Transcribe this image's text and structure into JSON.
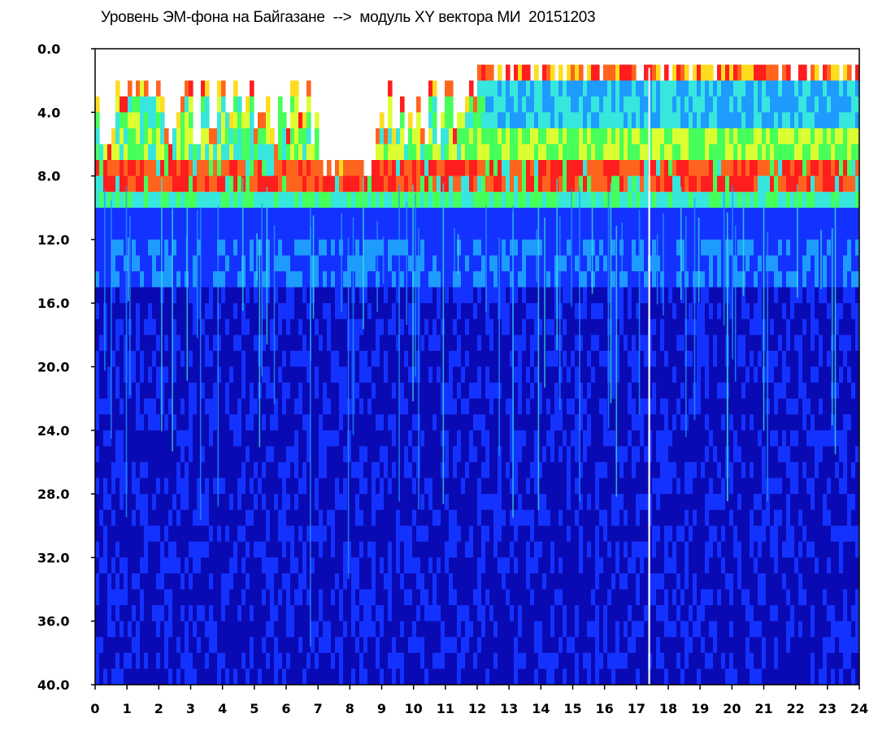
{
  "chart_data": {
    "type": "heatmap",
    "title": "Уровень ЭМ-фона на Байгазане  -->  модуль XY вектора МИ  20151203",
    "xlabel": "",
    "ylabel": "",
    "xlim": [
      0,
      24
    ],
    "ylim": [
      0.0,
      40.0
    ],
    "y_axis_inverted": true,
    "x_ticks": [
      "0",
      "1",
      "2",
      "3",
      "4",
      "5",
      "6",
      "7",
      "8",
      "9",
      "10",
      "11",
      "12",
      "13",
      "14",
      "15",
      "16",
      "17",
      "18",
      "19",
      "20",
      "21",
      "22",
      "23",
      "24"
    ],
    "y_ticks": [
      "0.0",
      "4.0",
      "8.0",
      "12.0",
      "16.0",
      "20.0",
      "24.0",
      "28.0",
      "32.0",
      "36.0",
      "40.0"
    ],
    "colormap": [
      "#0a0ab4",
      "#1432ff",
      "#1e9bff",
      "#37e6dc",
      "#46ff5a",
      "#dcff32",
      "#ffdc1e",
      "#ff641e",
      "#ff1e1e"
    ],
    "grid": false,
    "legend": "none",
    "features": {
      "red_band_y": 8.0,
      "secondary_band_y": 13.5,
      "gap_line_x": 17.4,
      "quiet_interval_x": [
        7.0,
        8.8
      ]
    }
  }
}
